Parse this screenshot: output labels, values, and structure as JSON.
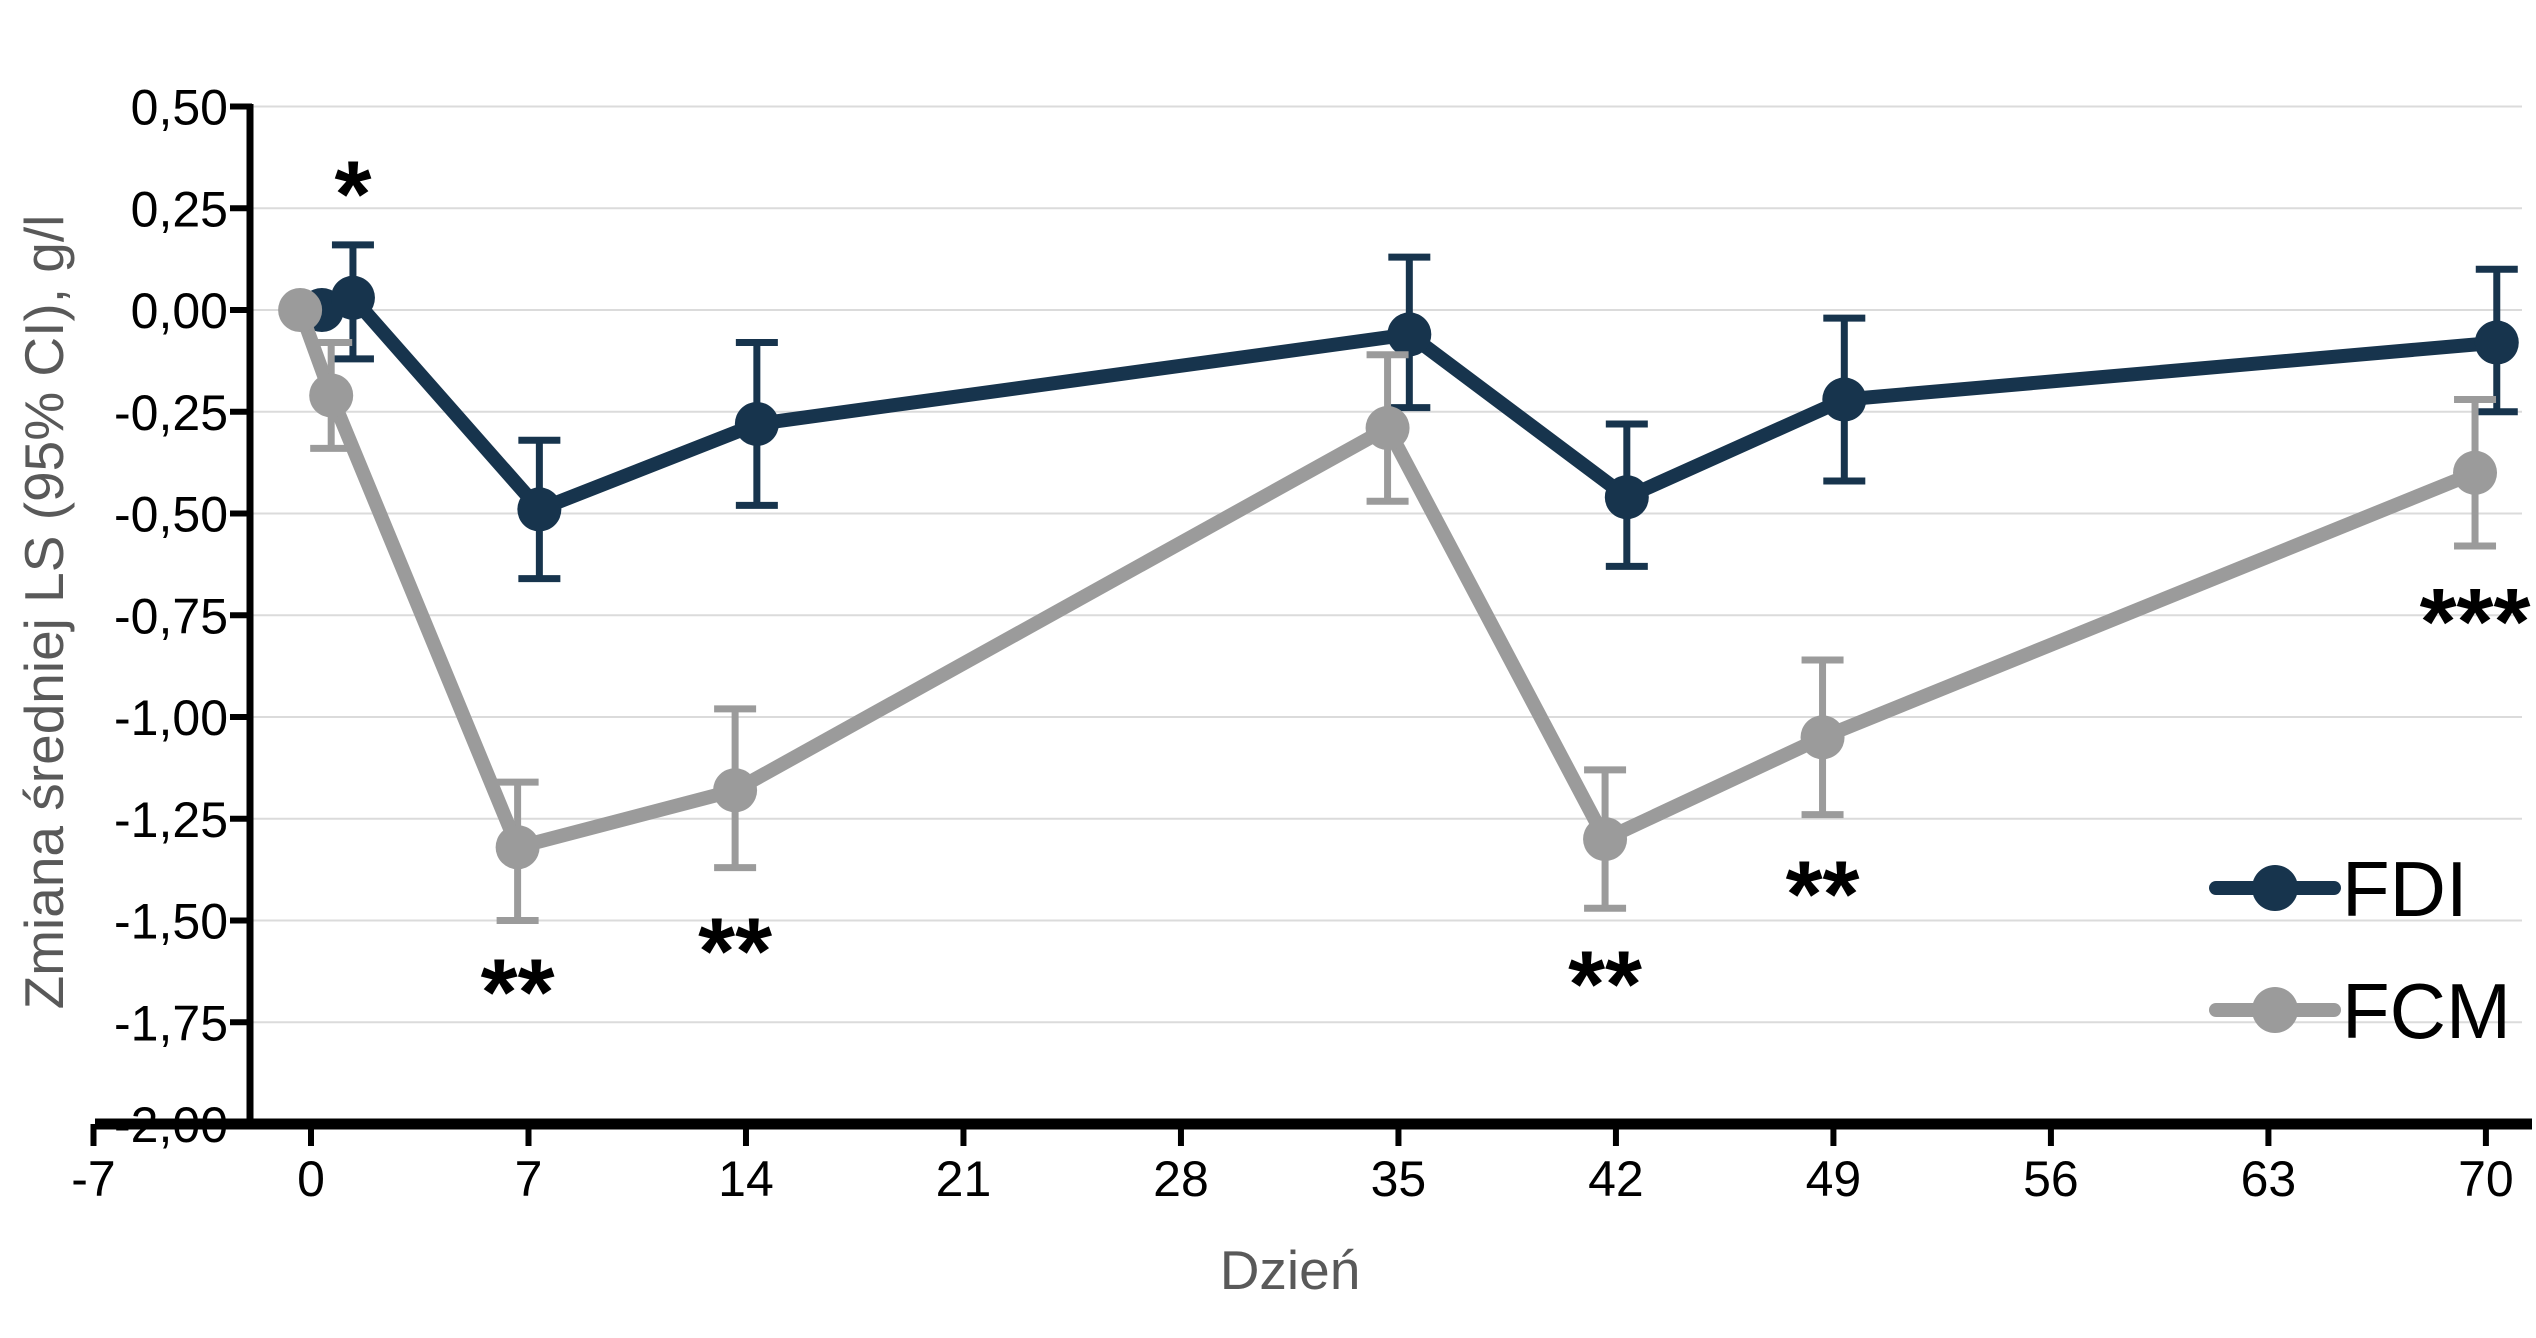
{
  "chart_data": {
    "type": "line",
    "title": "",
    "xlabel": "Dzień",
    "ylabel": "Zmiana średniej LS (95% CI), g/l",
    "xlim": [
      -7,
      70
    ],
    "ylim": [
      -2.0,
      0.5
    ],
    "grid": "horizontal",
    "error_bars": true,
    "decimal_separator": ",",
    "x_ticks": [
      -7,
      0,
      7,
      14,
      21,
      28,
      35,
      42,
      49,
      56,
      63,
      70
    ],
    "y_ticks": [
      0.5,
      0.25,
      0,
      -0.25,
      -0.5,
      -0.75,
      -1,
      -1.25,
      -1.5,
      -1.75,
      -2
    ],
    "y_tick_labels": [
      "0,50",
      "0,25",
      "0,00",
      "-0,25",
      "-0,50",
      "-0,75",
      "-1,00",
      "-1,25",
      "-1,50",
      "-1,75",
      "-2,00"
    ],
    "series": [
      {
        "name": "FDI",
        "color": "#17344D",
        "x_offset_days": 0.35,
        "points": [
          {
            "day": 0,
            "value": 0.0,
            "ci_low": null,
            "ci_high": null
          },
          {
            "day": 1,
            "value": 0.03,
            "ci_low": -0.12,
            "ci_high": 0.16
          },
          {
            "day": 7,
            "value": -0.49,
            "ci_low": -0.66,
            "ci_high": -0.32
          },
          {
            "day": 14,
            "value": -0.28,
            "ci_low": -0.48,
            "ci_high": -0.08
          },
          {
            "day": 35,
            "value": -0.06,
            "ci_low": -0.24,
            "ci_high": 0.13
          },
          {
            "day": 42,
            "value": -0.46,
            "ci_low": -0.63,
            "ci_high": -0.28
          },
          {
            "day": 49,
            "value": -0.22,
            "ci_low": -0.42,
            "ci_high": -0.02
          },
          {
            "day": 70,
            "value": -0.08,
            "ci_low": -0.25,
            "ci_high": 0.1
          }
        ]
      },
      {
        "name": "FCM",
        "color": "#9B9B9B",
        "x_offset_days": -0.35,
        "points": [
          {
            "day": 0,
            "value": 0.0,
            "ci_low": null,
            "ci_high": null
          },
          {
            "day": 1,
            "value": -0.21,
            "ci_low": -0.34,
            "ci_high": -0.08
          },
          {
            "day": 7,
            "value": -1.32,
            "ci_low": -1.5,
            "ci_high": -1.16
          },
          {
            "day": 14,
            "value": -1.18,
            "ci_low": -1.37,
            "ci_high": -0.98
          },
          {
            "day": 35,
            "value": -0.29,
            "ci_low": -0.47,
            "ci_high": -0.11
          },
          {
            "day": 42,
            "value": -1.3,
            "ci_low": -1.47,
            "ci_high": -1.13
          },
          {
            "day": 49,
            "value": -1.05,
            "ci_low": -1.24,
            "ci_high": -0.86
          },
          {
            "day": 70,
            "value": -0.4,
            "ci_low": -0.58,
            "ci_high": -0.22
          }
        ]
      }
    ],
    "annotations": [
      {
        "text": "*",
        "series": "FDI",
        "day": 1,
        "value": 0.33
      },
      {
        "text": "**",
        "series": "FCM",
        "day": 7,
        "value": -1.63
      },
      {
        "text": "**",
        "series": "FCM",
        "day": 14,
        "value": -1.53
      },
      {
        "text": "**",
        "series": "FCM",
        "day": 42,
        "value": -1.61
      },
      {
        "text": "**",
        "series": "FCM",
        "day": 49,
        "value": -1.39
      },
      {
        "text": "***",
        "series": "FCM",
        "day": 70,
        "value": -0.72
      }
    ],
    "legend": {
      "position": "inside-bottom-right",
      "items": [
        "FDI",
        "FCM"
      ]
    }
  },
  "styles": {
    "background": "#FFFFFF",
    "grid_color": "#DBDBDB",
    "axis_color": "#000000",
    "tick_label_color": "#000000",
    "axis_title_color": "#595959",
    "legend_text_color": "#000000",
    "annotation_color": "#000000"
  }
}
